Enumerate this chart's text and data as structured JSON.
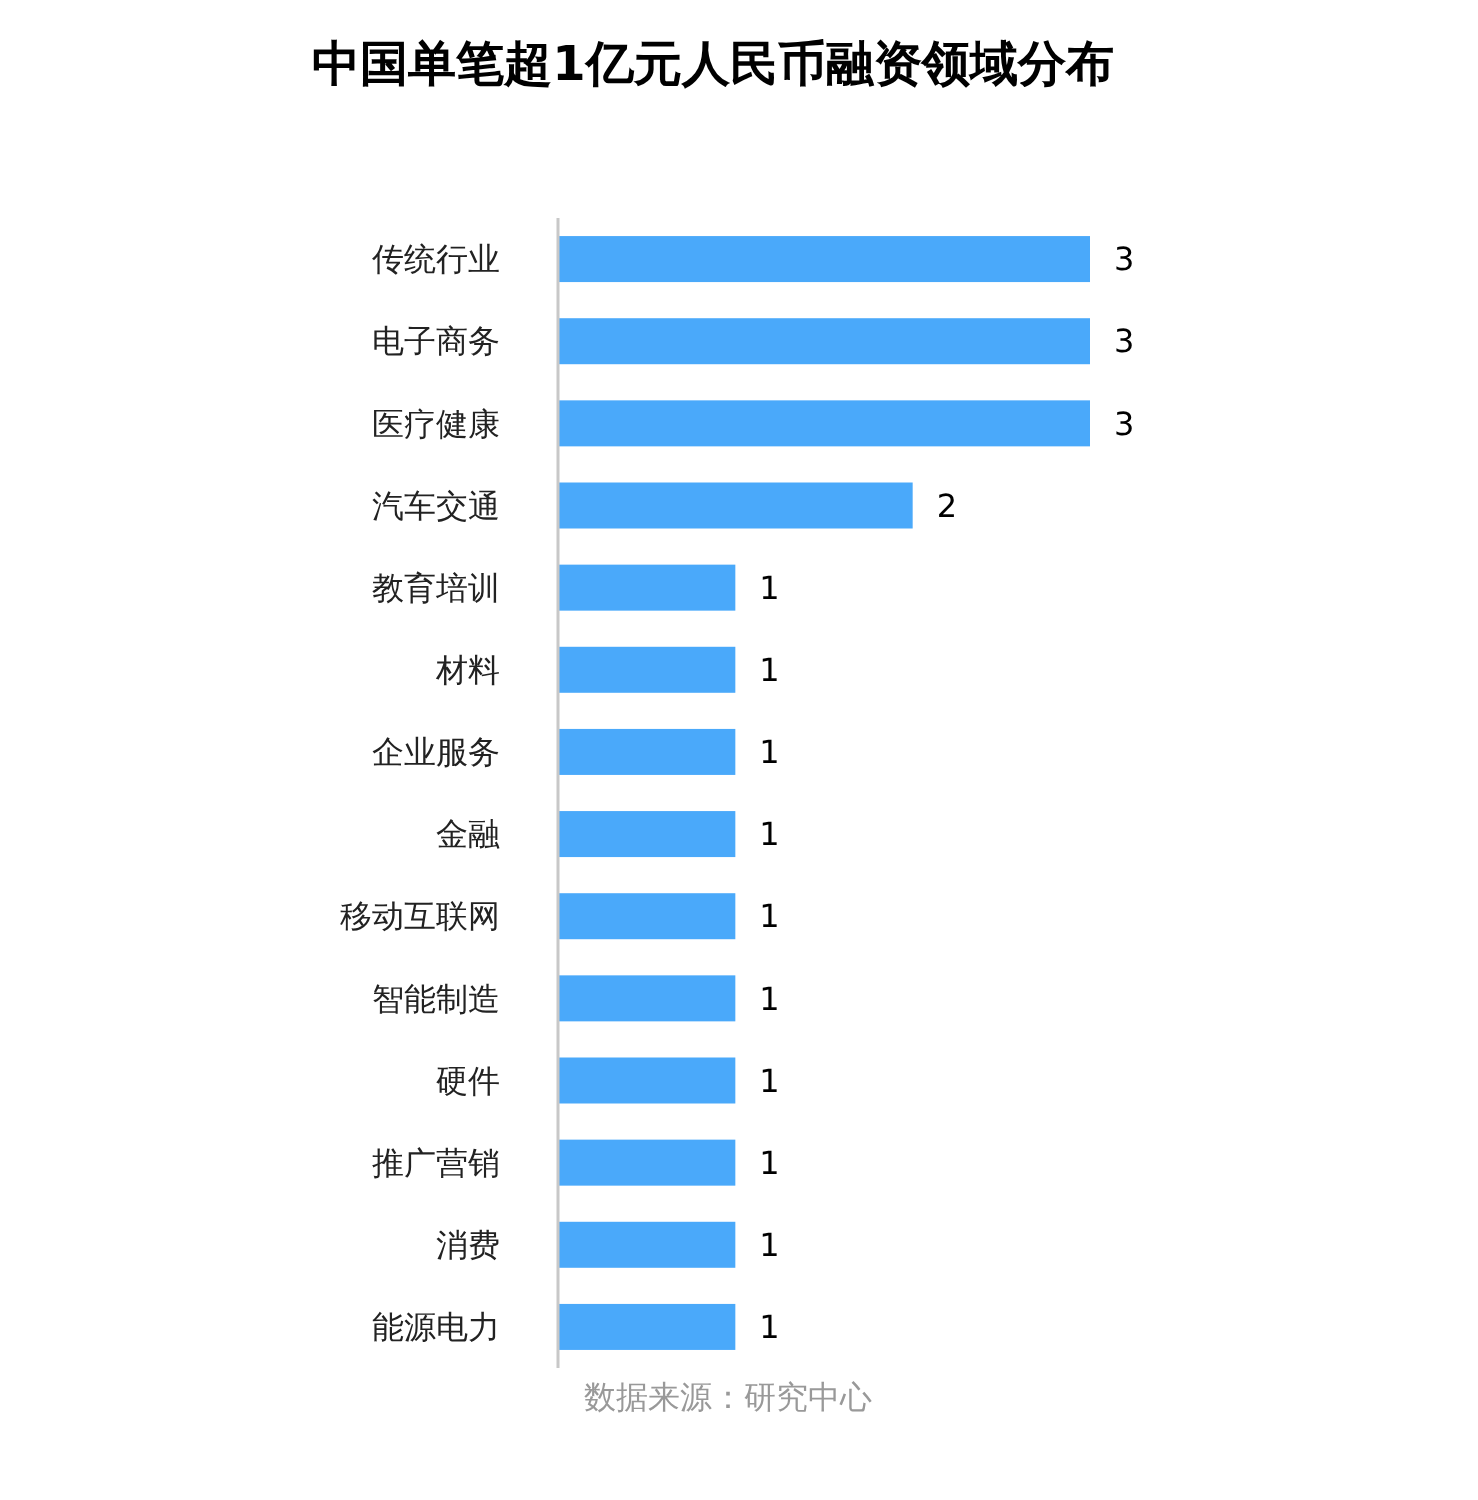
{
  "chart_data": {
    "type": "bar",
    "orientation": "horizontal",
    "title": "中国单笔超1亿元人民币融资领域分布",
    "categories": [
      "传统行业",
      "电子商务",
      "医疗健康",
      "汽车交通",
      "教育培训",
      "材料",
      "企业服务",
      "金融",
      "移动互联网",
      "智能制造",
      "硬件",
      "推广营销",
      "消费",
      "能源电力"
    ],
    "values": [
      3,
      3,
      3,
      2,
      1,
      1,
      1,
      1,
      1,
      1,
      1,
      1,
      1,
      1
    ],
    "color": "#4aa9fa",
    "data_labels": true,
    "annotations": [
      "数据来源：研究中心"
    ]
  }
}
